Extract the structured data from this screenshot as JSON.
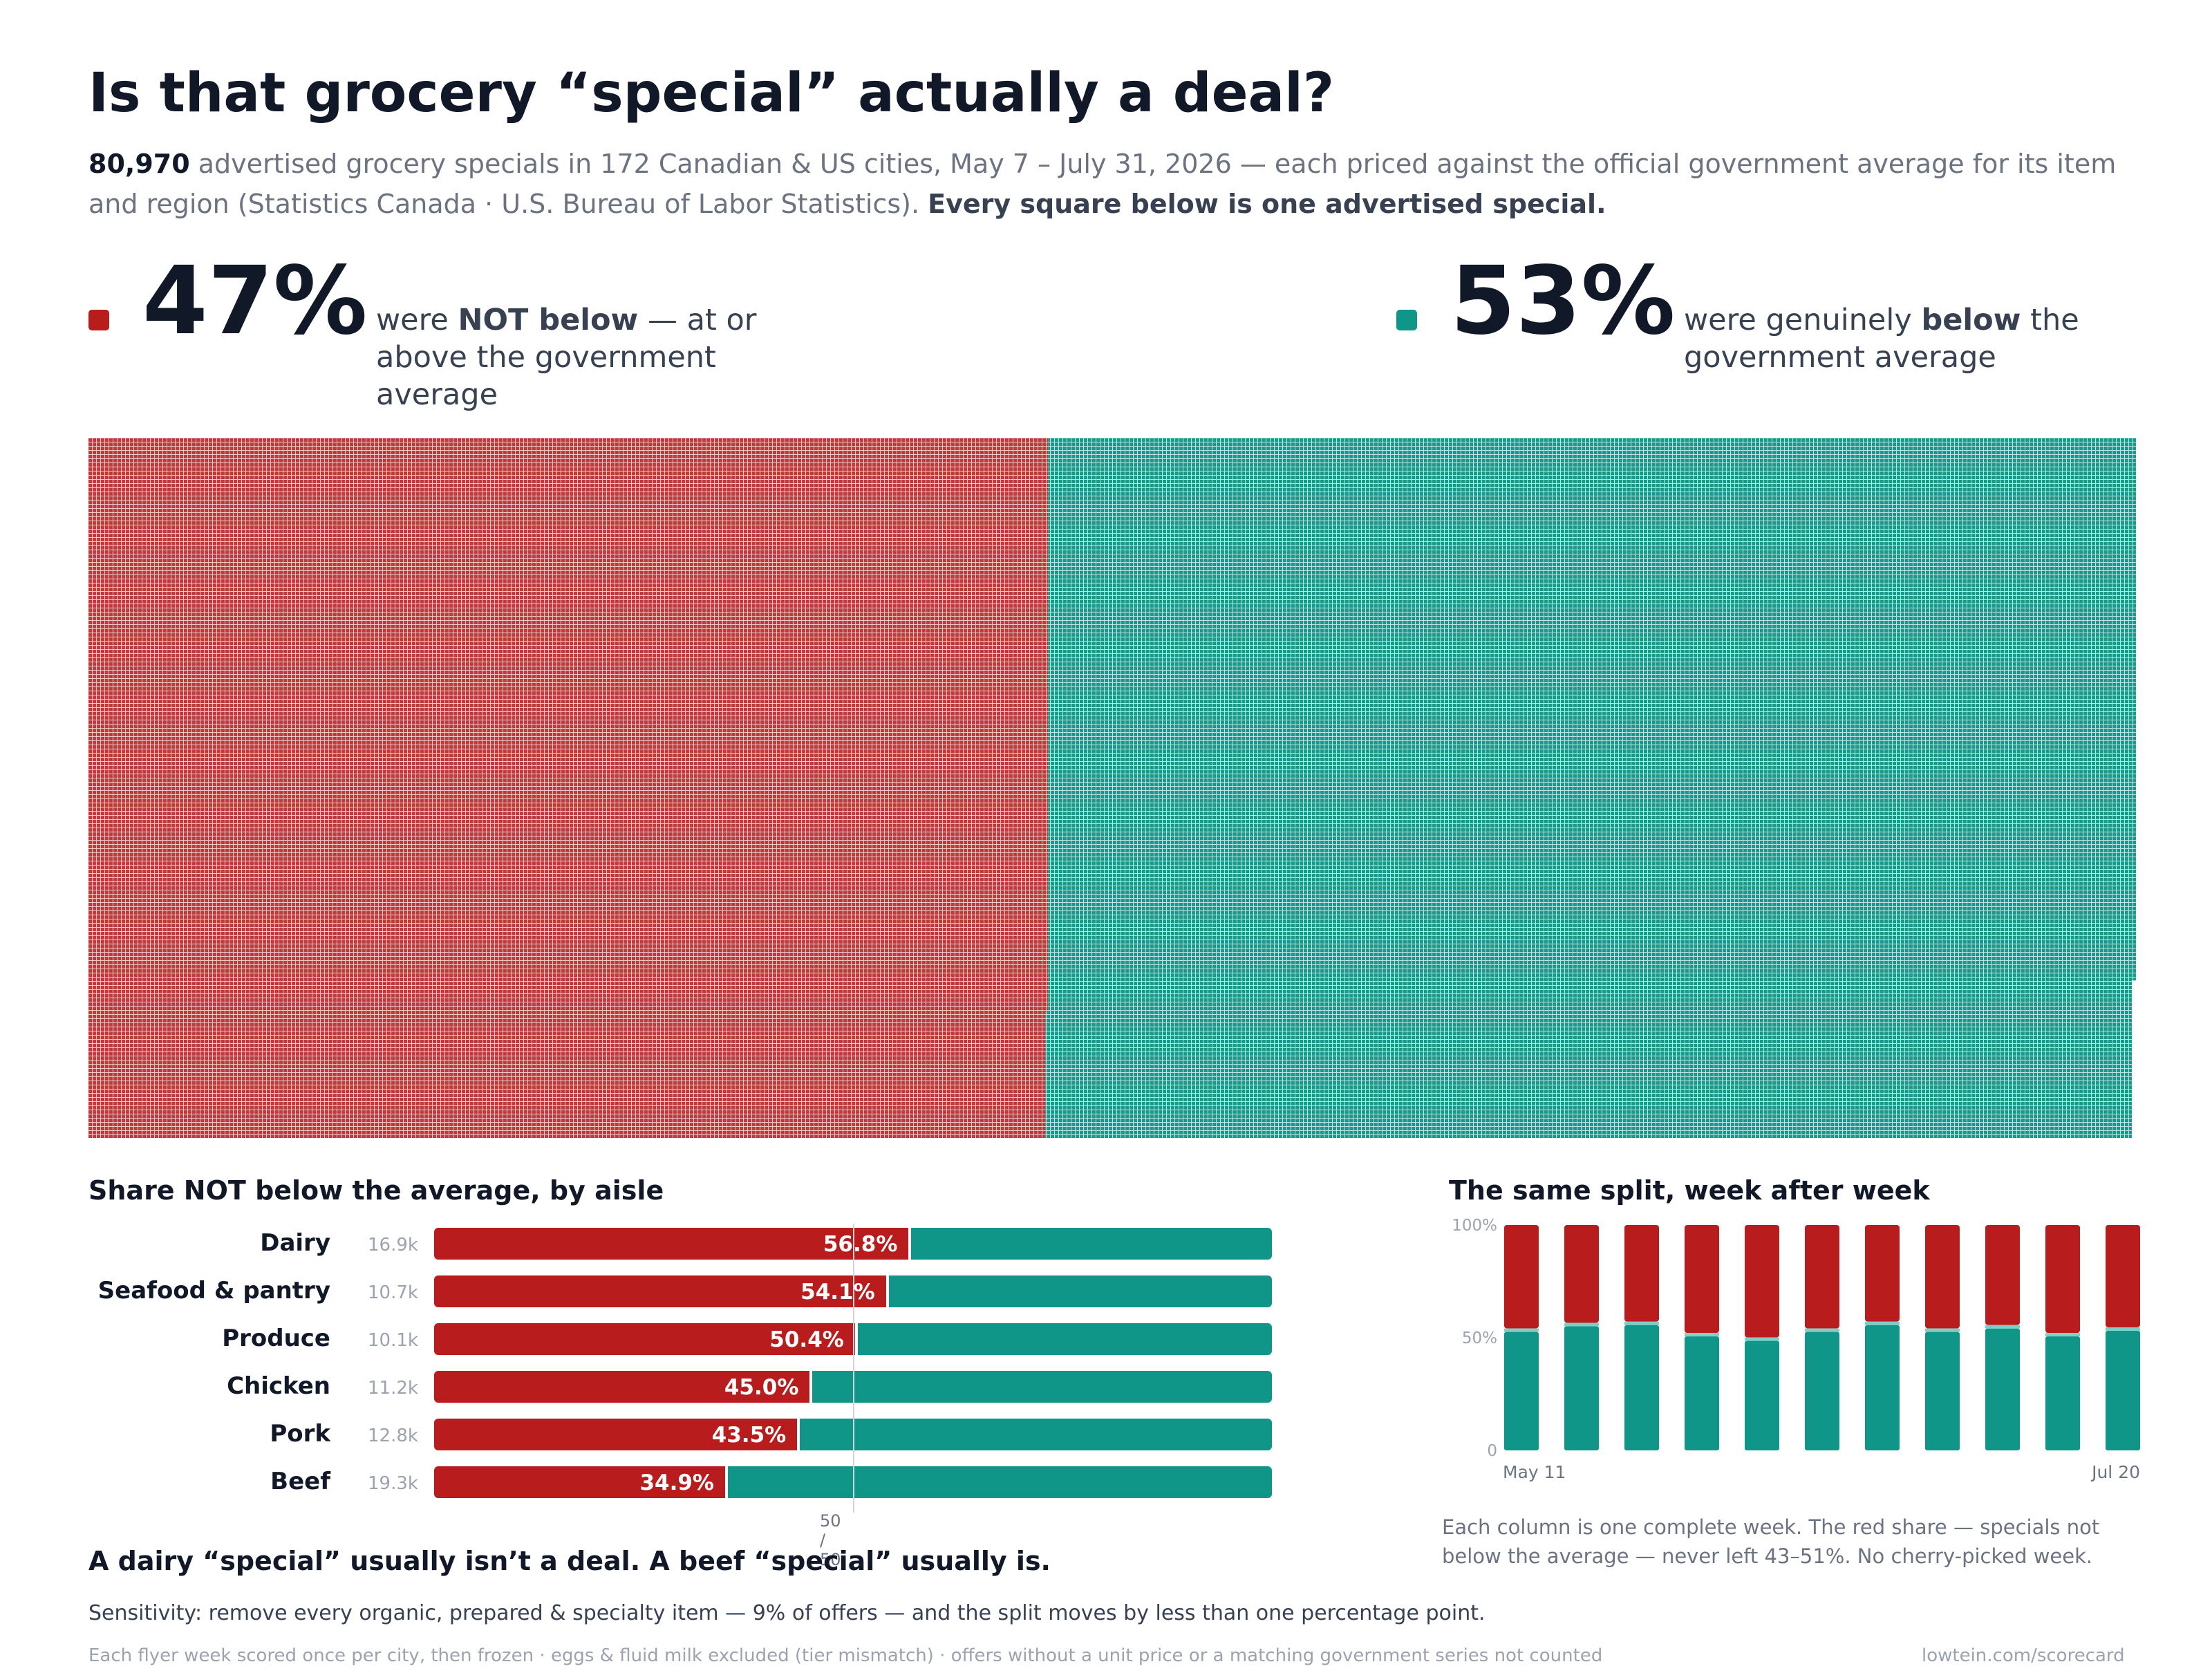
{
  "header": {
    "title": "Is that grocery “special” actually a deal?",
    "subtitle_lead": "80,970",
    "subtitle_text": " advertised grocery specials in 172 Canadian & US cities, May 7 – July 31, 2026 — each priced against the official government average for its item and region (Statistics Canada · U.S. Bureau of Labor Statistics). ",
    "subtitle_bold": "Every square below is one advertised special."
  },
  "kpis": {
    "not_below": {
      "pct": "47%",
      "text_pre": "were ",
      "text_bold": "NOT below",
      "text_post": " — at or above the government average",
      "color": "#b91c1c"
    },
    "below": {
      "pct": "53%",
      "text_pre": "were genuinely ",
      "text_bold": "below",
      "text_post": " the government average",
      "color": "#0f9688"
    }
  },
  "colors": {
    "red": "#b91c1c",
    "teal": "#0f9688",
    "waffle_red": "#c0393b",
    "waffle_teal": "#17998b"
  },
  "chart_data": [
    {
      "type": "waffle",
      "total": 80970,
      "categories": [
        "NOT below the government average",
        "below the government average"
      ],
      "values": [
        47,
        53
      ],
      "unit": "%"
    },
    {
      "type": "bar",
      "stacked": true,
      "orientation": "horizontal",
      "title": "Share NOT below the average, by aisle",
      "categories": [
        "Dairy",
        "Seafood & pantry",
        "Produce",
        "Chicken",
        "Pork",
        "Beef"
      ],
      "counts": [
        "16.9k",
        "10.7k",
        "10.1k",
        "11.2k",
        "12.8k",
        "19.3k"
      ],
      "series": [
        {
          "values": [
            56.8,
            54.1,
            50.4,
            45.0,
            43.5,
            34.9
          ],
          "labels": [
            "56.8%",
            "54.1%",
            "50.4%",
            "45.0%",
            "43.5%",
            "34.9%"
          ]
        }
      ],
      "xlim": [
        0,
        100
      ],
      "reference_label": "50 / 50"
    },
    {
      "type": "bar",
      "stacked": true,
      "title": "The same split, week after week",
      "x": [
        "May 11",
        "",
        "",
        "",
        "",
        "",
        "",
        "",
        "",
        "",
        "Jul 20"
      ],
      "series": [
        {
          "values": [
            46.5,
            44.0,
            43.5,
            48.5,
            50.5,
            46.5,
            43.5,
            46.5,
            45.0,
            48.5,
            46.0
          ]
        }
      ],
      "ylim": [
        0,
        100
      ],
      "y_ticks": [
        "0",
        "50%",
        "100%"
      ],
      "note": "Each column is one complete week. The red share — specials not below the average — never left 43–51%. No cherry-picked week."
    }
  ],
  "takeaway": "A dairy “special” usually isn’t a deal. A beef “special” usually is.",
  "sensitivity": "Sensitivity: remove every organic, prepared & specialty item — 9% of offers — and the split moves by less than one percentage point.",
  "footnote": "Each flyer week scored once per city, then frozen · eggs & fluid milk excluded (tier mismatch) · offers without a unit price or a matching government series not counted",
  "footer_url": "lowtein.com/scorecard"
}
